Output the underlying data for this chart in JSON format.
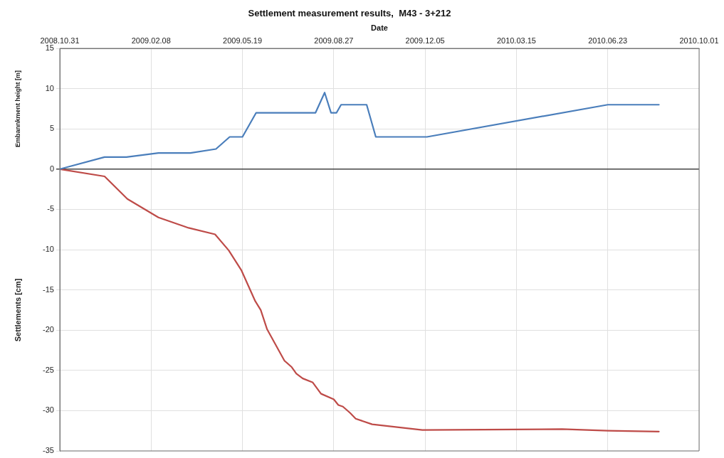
{
  "chart_data": {
    "type": "line",
    "title": "Settlement measurement results,  M43 - 3+212",
    "xlabel": "Date",
    "ylabel": "Settlements [cm]",
    "annotations": [
      "Embannkment height [m]"
    ],
    "xlim": [
      "2008-10-31",
      "2010-10-01"
    ],
    "xticks": [
      {
        "value": "2008-10-31",
        "label": "2008.10.31"
      },
      {
        "value": "2009-02-08",
        "label": "2009.02.08"
      },
      {
        "value": "2009-05-19",
        "label": "2009.05.19"
      },
      {
        "value": "2009-08-27",
        "label": "2009.08.27"
      },
      {
        "value": "2009-12-05",
        "label": "2009.12.05"
      },
      {
        "value": "2010-03-15",
        "label": "2010.03.15"
      },
      {
        "value": "2010-06-23",
        "label": "2010.06.23"
      },
      {
        "value": "2010-10-01",
        "label": "2010.10.01"
      }
    ],
    "ylim": [
      -35,
      15
    ],
    "yticks": [
      -35,
      -30,
      -25,
      -20,
      -15,
      -10,
      -5,
      0,
      5,
      10,
      15
    ],
    "grid": true,
    "marker": "none",
    "line_style": "solid",
    "series": [
      {
        "color": "#4a7ebb",
        "x": [
          "2008-10-31",
          "2008-12-19",
          "2009-01-12",
          "2009-02-16",
          "2009-03-23",
          "2009-04-20",
          "2009-05-05",
          "2009-05-19",
          "2009-06-03",
          "2009-08-07",
          "2009-08-17",
          "2009-08-24",
          "2009-08-30",
          "2009-09-04",
          "2009-10-02",
          "2009-10-12",
          "2009-12-07",
          "2010-06-23",
          "2010-08-18"
        ],
        "values": [
          0,
          1.5,
          1.5,
          2,
          2,
          2.5,
          4,
          4,
          7,
          7,
          9.5,
          7,
          7,
          8,
          8,
          4,
          4,
          8,
          8
        ]
      },
      {
        "color": "#be4b48",
        "x": [
          "2008-10-31",
          "2008-12-19",
          "2009-01-13",
          "2009-02-16",
          "2009-03-21",
          "2009-04-19",
          "2009-05-04",
          "2009-05-18",
          "2009-06-02",
          "2009-06-08",
          "2009-06-15",
          "2009-07-04",
          "2009-07-12",
          "2009-07-17",
          "2009-07-24",
          "2009-08-04",
          "2009-08-13",
          "2009-08-27",
          "2009-09-01",
          "2009-09-06",
          "2009-09-14",
          "2009-09-20",
          "2009-10-08",
          "2009-12-02",
          "2010-05-04",
          "2010-06-23",
          "2010-08-18"
        ],
        "values": [
          0,
          -0.9,
          -3.7,
          -6,
          -7.3,
          -8.1,
          -10.1,
          -12.6,
          -16.4,
          -17.5,
          -19.9,
          -23.8,
          -24.6,
          -25.4,
          -26,
          -26.5,
          -27.9,
          -28.6,
          -29.3,
          -29.5,
          -30.3,
          -31,
          -31.7,
          -32.4,
          -32.3,
          -32.5,
          -32.6
        ]
      }
    ]
  }
}
